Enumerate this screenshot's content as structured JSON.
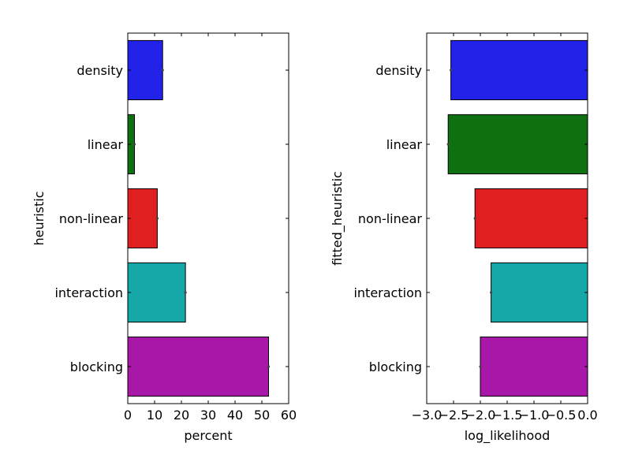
{
  "chart_data": [
    {
      "type": "bar",
      "orientation": "horizontal",
      "categories": [
        "density",
        "linear",
        "non-linear",
        "interaction",
        "blocking"
      ],
      "values": [
        13,
        2.5,
        11,
        21.5,
        52.5
      ],
      "colors": [
        "#2222e8",
        "#0e7010",
        "#e02020",
        "#16a8a8",
        "#a818a8"
      ],
      "xlabel": "percent",
      "ylabel": "heuristic",
      "xlim": [
        0,
        60
      ],
      "xticks": [
        0,
        10,
        20,
        30,
        40,
        50,
        60
      ],
      "xtick_labels": [
        "0",
        "10",
        "20",
        "30",
        "40",
        "50",
        "60"
      ],
      "grid": false
    },
    {
      "type": "bar",
      "orientation": "horizontal",
      "categories": [
        "density",
        "linear",
        "non-linear",
        "interaction",
        "blocking"
      ],
      "values": [
        -2.55,
        -2.6,
        -2.1,
        -1.8,
        -2.0
      ],
      "colors": [
        "#2222e8",
        "#0e7010",
        "#e02020",
        "#16a8a8",
        "#a818a8"
      ],
      "xlabel": "log_likelihood",
      "ylabel": "fitted_heuristic",
      "xlim": [
        -3.0,
        0.0
      ],
      "xticks": [
        -3.0,
        -2.5,
        -2.0,
        -1.5,
        -1.0,
        -0.5,
        0.0
      ],
      "xtick_labels": [
        "−3.0",
        "−2.5",
        "−2.0",
        "−1.5",
        "−1.0",
        "−0.5",
        "0.0"
      ],
      "grid": false
    }
  ]
}
